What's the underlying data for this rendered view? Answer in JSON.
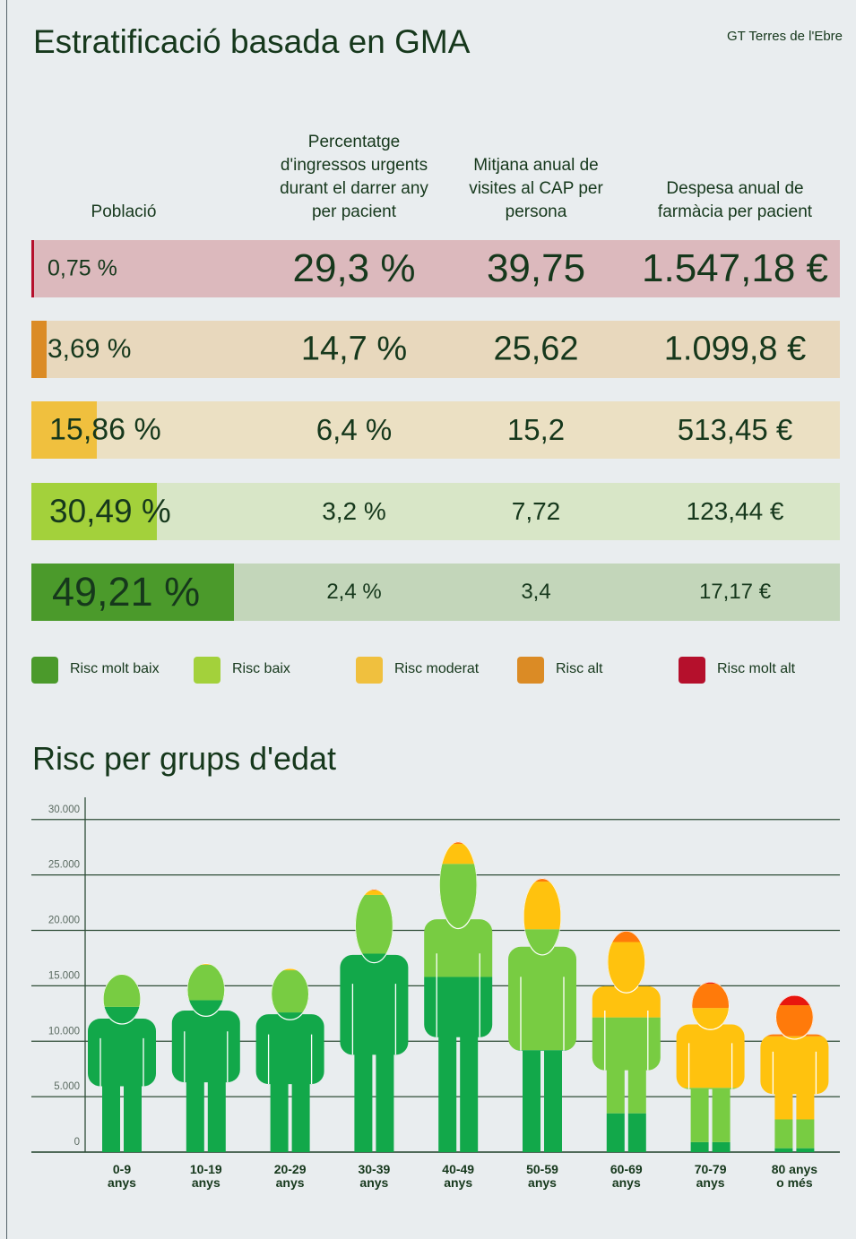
{
  "header": {
    "title": "Estratificació basada en GMA",
    "source": "GT Terres de l'Ebre"
  },
  "table": {
    "columns": [
      "Població",
      "Percentatge d'ingressos urgents durant el darrer any per pacient",
      "Mitjana anual de visites al CAP per persona",
      "Despesa anual de farmàcia per pacient"
    ],
    "rows": [
      {
        "population": {
          "value": 0.75,
          "label": "0,75 %"
        },
        "cells": [
          "29,3 %",
          "39,75",
          "1.547,18 €"
        ],
        "bar_color": "#b5102c",
        "row_color": "#dcb9bd"
      },
      {
        "population": {
          "value": 3.69,
          "label": "3,69 %"
        },
        "cells": [
          "14,7 %",
          "25,62",
          "1.099,8 €"
        ],
        "bar_color": "#db8b25",
        "row_color": "#e8d8bd"
      },
      {
        "population": {
          "value": 15.86,
          "label": "15,86 %"
        },
        "cells": [
          "6,4 %",
          "15,2",
          "513,45 €"
        ],
        "bar_color": "#f0c03e",
        "row_color": "#ebe0c3"
      },
      {
        "population": {
          "value": 30.49,
          "label": "30,49 %"
        },
        "cells": [
          "3,2 %",
          "7,72",
          "123,44 €"
        ],
        "bar_color": "#a3d13b",
        "row_color": "#d8e6c7"
      },
      {
        "population": {
          "value": 49.21,
          "label": "49,21 %"
        },
        "cells": [
          "2,4 %",
          "3,4",
          "17,17 €"
        ],
        "bar_color": "#4b9a2b",
        "row_color": "#c3d6ba"
      }
    ]
  },
  "chart_data": {
    "type": "stacked_figure",
    "title": "Risc per grups d'edat",
    "categories": [
      "0-9\nanys",
      "10-19\nanys",
      "20-29\nanys",
      "30-39\nanys",
      "40-49\nanys",
      "50-59\nanys",
      "60-69\nanys",
      "70-79\nanys",
      "80 anys\no més"
    ],
    "series": [
      {
        "name": "Risc molt baix",
        "color": "#12a84a",
        "legend_color": "#4b9a2b",
        "values": [
          13100,
          13700,
          12600,
          17900,
          15800,
          9200,
          3500,
          900,
          350
        ]
      },
      {
        "name": "Risc baix",
        "color": "#78cc42",
        "legend_color": "#a3d13b",
        "values": [
          2900,
          3200,
          3800,
          5300,
          10200,
          10900,
          8650,
          4900,
          2600
        ]
      },
      {
        "name": "Risc moderat",
        "color": "#ffc20e",
        "legend_color": "#f0c03e",
        "values": [
          50,
          100,
          150,
          400,
          1800,
          4300,
          6800,
          7200,
          7500
        ]
      },
      {
        "name": "Risc alt",
        "color": "#ff7a0a",
        "legend_color": "#db8b25",
        "values": [
          0,
          20,
          30,
          100,
          150,
          250,
          950,
          2200,
          2800
        ]
      },
      {
        "name": "Risc molt alt",
        "color": "#e8160e",
        "legend_color": "#b5102c",
        "values": [
          0,
          0,
          0,
          20,
          50,
          50,
          50,
          150,
          900
        ]
      }
    ],
    "ylim": [
      0,
      32000
    ],
    "yticks": [
      0,
      {
        "value": 5000,
        "label": "5.000"
      },
      {
        "value": 10000,
        "label": "10.000"
      },
      {
        "value": 15000,
        "label": "15.000"
      },
      {
        "value": 20000,
        "label": "20.000"
      },
      {
        "value": 25000,
        "label": "25.000"
      },
      {
        "value": 30000,
        "label": "30.000"
      }
    ],
    "grid": true
  }
}
